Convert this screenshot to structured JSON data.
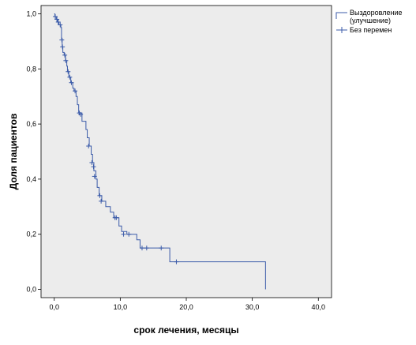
{
  "chart_data": {
    "type": "line",
    "title": "",
    "xlabel": "срок лечения, месяцы",
    "ylabel": "Доля пациентов",
    "xlim": [
      -2,
      42
    ],
    "ylim": [
      -0.03,
      1.03
    ],
    "xticks": [
      0,
      10,
      20,
      30,
      40
    ],
    "xtick_labels": [
      "0,0",
      "10,0",
      "20,0",
      "30,0",
      "40,0"
    ],
    "yticks": [
      0,
      0.2,
      0.4,
      0.6,
      0.8,
      1.0
    ],
    "ytick_labels": [
      "0,0",
      "0,2",
      "0,4",
      "0,6",
      "0,8",
      "1,0"
    ],
    "grid": false,
    "plot_background": "#ececec",
    "series_color": "#3b5ba9",
    "legend_position": "right-top",
    "series": [
      {
        "name": "Выздоровление (улучшение)",
        "step_points": [
          [
            0,
            1.0
          ],
          [
            0.1,
            0.99
          ],
          [
            0.3,
            0.98
          ],
          [
            0.5,
            0.97
          ],
          [
            0.7,
            0.96
          ],
          [
            1.0,
            0.95
          ],
          [
            1.1,
            0.91
          ],
          [
            1.2,
            0.88
          ],
          [
            1.3,
            0.86
          ],
          [
            1.5,
            0.85
          ],
          [
            1.7,
            0.83
          ],
          [
            1.9,
            0.81
          ],
          [
            2.0,
            0.79
          ],
          [
            2.2,
            0.77
          ],
          [
            2.5,
            0.75
          ],
          [
            2.8,
            0.73
          ],
          [
            3.0,
            0.72
          ],
          [
            3.3,
            0.7
          ],
          [
            3.5,
            0.67
          ],
          [
            3.7,
            0.64
          ],
          [
            4.2,
            0.61
          ],
          [
            4.8,
            0.58
          ],
          [
            5.0,
            0.55
          ],
          [
            5.3,
            0.52
          ],
          [
            5.6,
            0.49
          ],
          [
            5.8,
            0.46
          ],
          [
            6.0,
            0.43
          ],
          [
            6.3,
            0.4
          ],
          [
            6.5,
            0.37
          ],
          [
            6.8,
            0.34
          ],
          [
            7.2,
            0.32
          ],
          [
            7.8,
            0.3
          ],
          [
            8.5,
            0.28
          ],
          [
            9.0,
            0.26
          ],
          [
            9.8,
            0.23
          ],
          [
            10.2,
            0.21
          ],
          [
            11.0,
            0.2
          ],
          [
            12.5,
            0.18
          ],
          [
            13.0,
            0.15
          ],
          [
            17.5,
            0.1
          ],
          [
            32.0,
            0.0
          ]
        ],
        "censored": [
          [
            0.15,
            0.99
          ],
          [
            0.4,
            0.98
          ],
          [
            0.6,
            0.97
          ],
          [
            0.9,
            0.96
          ],
          [
            1.15,
            0.905
          ],
          [
            1.25,
            0.88
          ],
          [
            1.6,
            0.85
          ],
          [
            1.75,
            0.83
          ],
          [
            2.1,
            0.79
          ],
          [
            2.35,
            0.77
          ],
          [
            2.6,
            0.75
          ],
          [
            3.15,
            0.72
          ],
          [
            3.8,
            0.64
          ],
          [
            4.0,
            0.635
          ],
          [
            5.2,
            0.52
          ],
          [
            5.7,
            0.46
          ],
          [
            5.95,
            0.445
          ],
          [
            6.1,
            0.41
          ],
          [
            6.9,
            0.34
          ],
          [
            7.1,
            0.32
          ],
          [
            9.2,
            0.26
          ],
          [
            9.4,
            0.26
          ],
          [
            10.5,
            0.2
          ],
          [
            11.3,
            0.2
          ],
          [
            13.3,
            0.15
          ],
          [
            14.0,
            0.15
          ],
          [
            16.2,
            0.15
          ],
          [
            18.5,
            0.1
          ]
        ]
      }
    ],
    "legend_items": [
      {
        "label": "Выздоровление\n(улучшение)",
        "symbol": "step"
      },
      {
        "label": "Без перемен",
        "symbol": "censor"
      }
    ]
  }
}
